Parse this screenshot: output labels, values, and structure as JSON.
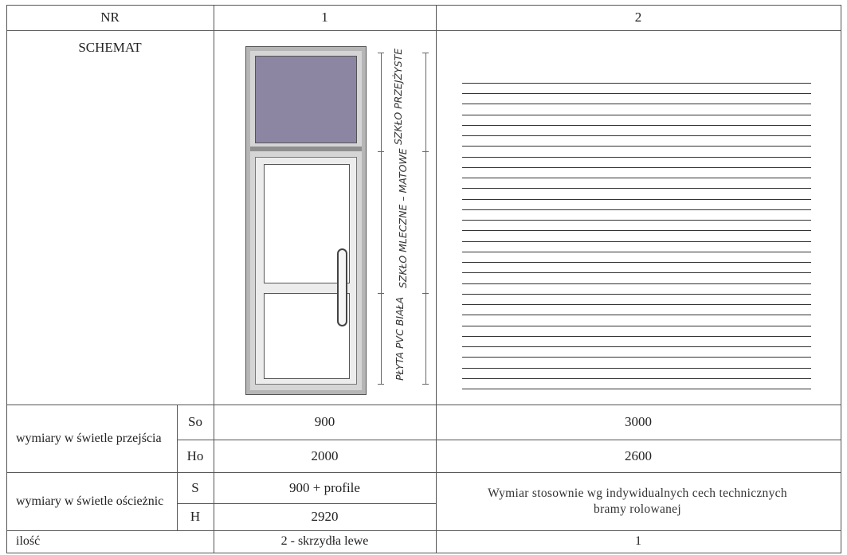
{
  "header": {
    "nr": "NR",
    "col1": "1",
    "col2": "2"
  },
  "schemat": {
    "label": "SCHEMAT",
    "door_labels": {
      "top": "SZKŁO PRZEJŻYSTE",
      "middle": "SZKŁO MLECZNE – MATOWE",
      "bottom": "PŁYTA PVC BIAŁA"
    },
    "shutter_slats": 30
  },
  "clear_opening": {
    "label": "wymiary w świetle przejścia",
    "rows": [
      {
        "sym": "So",
        "col1": "900",
        "col2": "3000"
      },
      {
        "sym": "Ho",
        "col1": "2000",
        "col2": "2600"
      }
    ]
  },
  "frame_opening": {
    "label": "wymiary w świetle ościeżnic",
    "rows": [
      {
        "sym": "S",
        "col1": "900 + profile"
      },
      {
        "sym": "H",
        "col1": "2920"
      }
    ],
    "col2_note": "Wymiar stosownie wg indywidualnych cech technicznych bramy rolowanej"
  },
  "quantity": {
    "label": "ilość",
    "col1": "2 - skrzydła lewe",
    "col2": "1"
  },
  "colors": {
    "glass": "#8c86a3",
    "frame": "#b6b6b6",
    "line": "#555555"
  }
}
